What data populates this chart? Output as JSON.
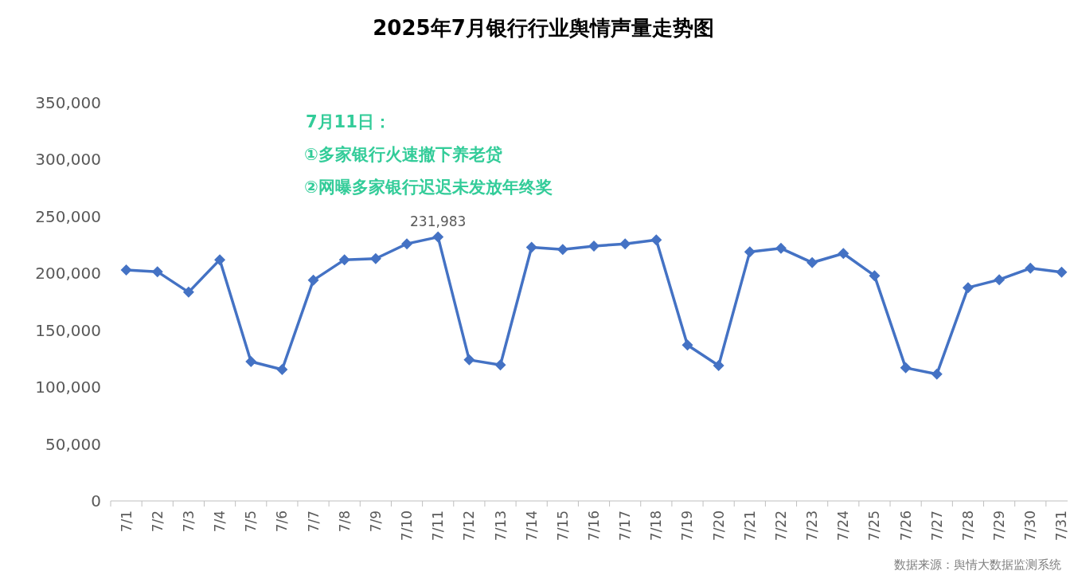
{
  "chart_data": {
    "type": "line",
    "title": "2025年7月银行行业舆情声量走势图",
    "categories": [
      "7/1",
      "7/2",
      "7/3",
      "7/4",
      "7/5",
      "7/6",
      "7/7",
      "7/8",
      "7/9",
      "7/10",
      "7/11",
      "7/12",
      "7/13",
      "7/14",
      "7/15",
      "7/16",
      "7/17",
      "7/18",
      "7/19",
      "7/20",
      "7/21",
      "7/22",
      "7/23",
      "7/24",
      "7/25",
      "7/26",
      "7/27",
      "7/28",
      "7/29",
      "7/30",
      "7/31"
    ],
    "series": [
      {
        "color": "#4472c4",
        "values": [
          203000,
          201500,
          183500,
          212000,
          122500,
          115500,
          194000,
          212000,
          213000,
          226000,
          231983,
          124000,
          119500,
          223000,
          221000,
          224000,
          226000,
          229500,
          137000,
          119000,
          219000,
          222000,
          209500,
          217500,
          198000,
          117000,
          111500,
          187500,
          194500,
          204500,
          201000
        ],
        "value_labels": [
          null,
          null,
          null,
          null,
          null,
          null,
          null,
          null,
          null,
          null,
          "231,983",
          null,
          null,
          null,
          null,
          null,
          null,
          null,
          null,
          null,
          null,
          null,
          null,
          null,
          null,
          null,
          null,
          null,
          null,
          null,
          null
        ]
      }
    ],
    "ylim": [
      0,
      350000
    ],
    "yticks": [
      {
        "value": 0,
        "label": "0"
      },
      {
        "value": 50000,
        "label": "50,000"
      },
      {
        "value": 100000,
        "label": "100,000"
      },
      {
        "value": 150000,
        "label": "150,000"
      },
      {
        "value": 200000,
        "label": "200,000"
      },
      {
        "value": 250000,
        "label": "250,000"
      },
      {
        "value": 300000,
        "label": "300,000"
      },
      {
        "value": 350000,
        "label": "350,000"
      }
    ],
    "marker": "diamond",
    "line_style": "solid",
    "annotations": [
      "7月11日：",
      "①多家银行火速撤下养老贷",
      "②网曝多家银行迟迟未发放年终奖",
      "数据来源：舆情大数据监测系统"
    ]
  }
}
